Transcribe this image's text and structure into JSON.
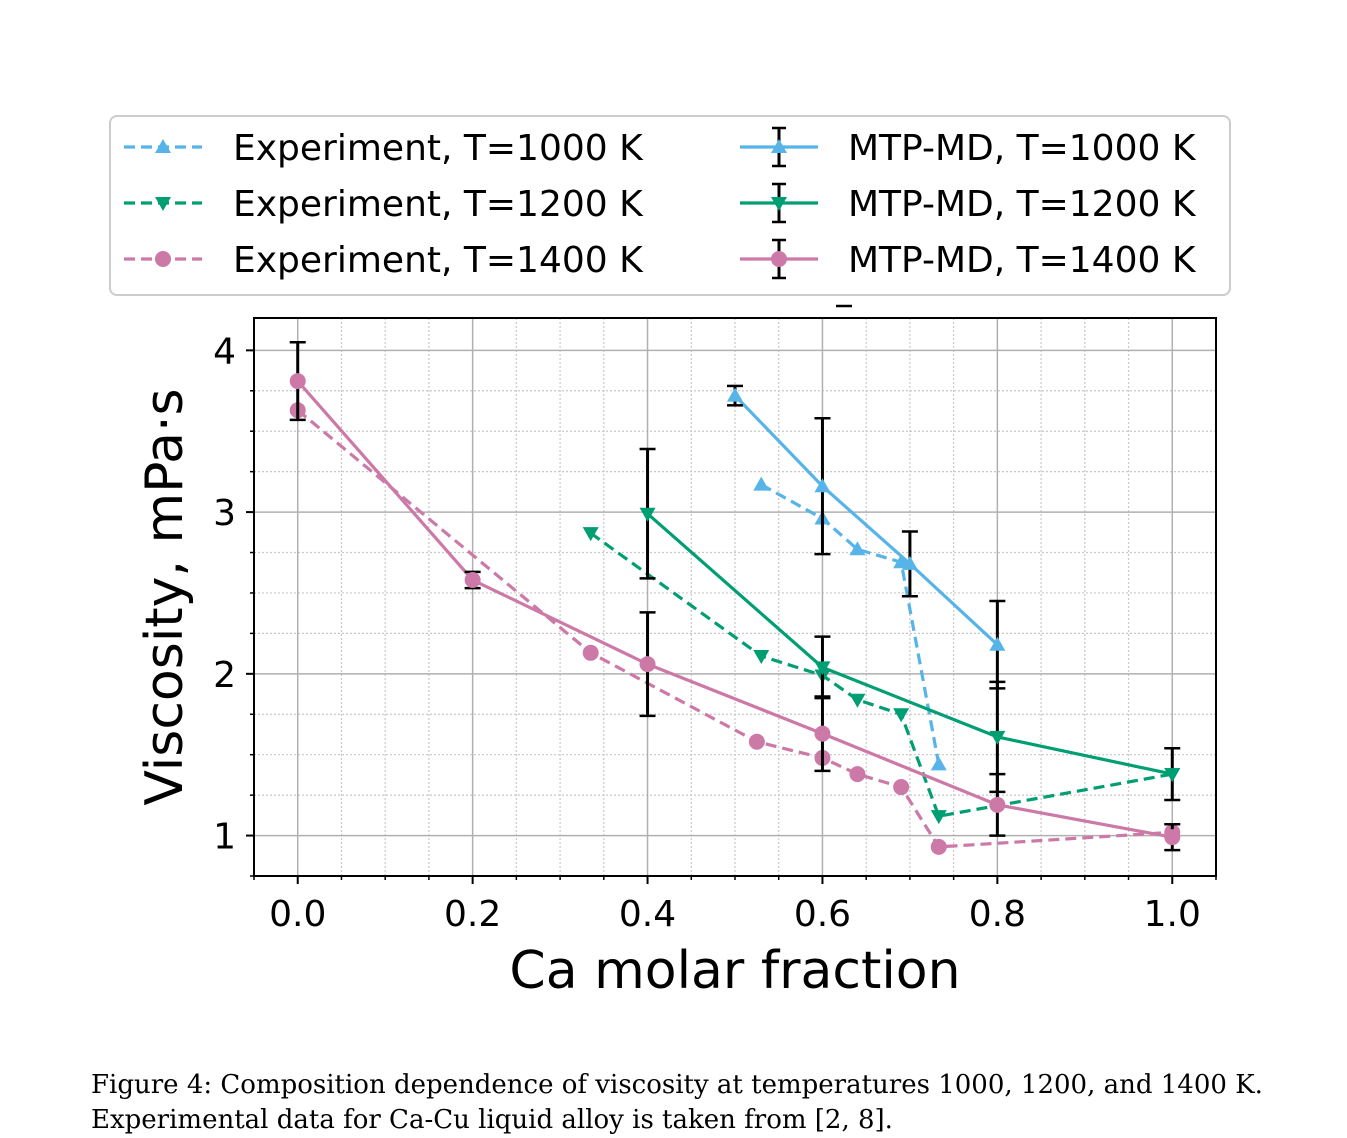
{
  "caption": {
    "line1": "Figure 4: Composition dependence of viscosity at temperatures 1000, 1200, and 1400 K.",
    "line2": "Experimental data for Ca-Cu liquid alloy is taken from [2, 8]."
  },
  "chart_data": {
    "type": "line",
    "title": "",
    "xlabel": "Ca molar fraction",
    "ylabel": "Viscosity, mPa·s",
    "xlim": [
      -0.05,
      1.05
    ],
    "ylim": [
      0.75,
      4.2
    ],
    "xticks": [
      0.0,
      0.2,
      0.4,
      0.6,
      0.8,
      1.0
    ],
    "xtick_labels": [
      "0.0",
      "0.2",
      "0.4",
      "0.6",
      "0.8",
      "1.0"
    ],
    "yticks": [
      1,
      2,
      3,
      4
    ],
    "ytick_labels": [
      "1",
      "2",
      "3",
      "4"
    ],
    "grid": "major solid, minor dotted",
    "legend_position": "above plot, two columns",
    "series": [
      {
        "name": "Experiment, T=1000 K",
        "color": "#56b4e9",
        "linestyle": "dashed",
        "marker": "triangle-up",
        "x": [
          0.53,
          0.6,
          0.64,
          0.69,
          0.733
        ],
        "y": [
          3.17,
          2.96,
          2.77,
          2.69,
          1.44
        ]
      },
      {
        "name": "Experiment, T=1200 K",
        "color": "#009e73",
        "linestyle": "dashed",
        "marker": "triangle-down",
        "x": [
          0.335,
          0.53,
          0.6,
          0.64,
          0.69,
          0.733,
          1.0
        ],
        "y": [
          2.87,
          2.11,
          1.99,
          1.84,
          1.75,
          1.12,
          1.38
        ]
      },
      {
        "name": "Experiment, T=1400 K",
        "color": "#cc79a7",
        "linestyle": "dashed",
        "marker": "circle",
        "x": [
          0.0,
          0.335,
          0.525,
          0.6,
          0.64,
          0.69,
          0.733,
          1.0
        ],
        "y": [
          3.63,
          2.13,
          1.58,
          1.48,
          1.38,
          1.3,
          0.93,
          1.02
        ]
      },
      {
        "name": "MTP-MD, T=1000 K",
        "color": "#56b4e9",
        "linestyle": "solid",
        "marker": "triangle-up",
        "x": [
          0.5,
          0.6,
          0.7,
          0.8
        ],
        "y": [
          3.72,
          3.16,
          2.68,
          2.18
        ],
        "yerr": [
          0.06,
          0.42,
          0.2,
          0.27
        ]
      },
      {
        "name": "MTP-MD, T=1200 K",
        "color": "#009e73",
        "linestyle": "solid",
        "marker": "triangle-down",
        "x": [
          0.4,
          0.6,
          0.8,
          1.0
        ],
        "y": [
          2.99,
          2.04,
          1.61,
          1.38
        ],
        "yerr": [
          0.4,
          0.19,
          0.34,
          0.16
        ]
      },
      {
        "name": "MTP-MD, T=1400 K",
        "color": "#cc79a7",
        "linestyle": "solid",
        "marker": "circle",
        "x": [
          0.0,
          0.2,
          0.4,
          0.6,
          0.8,
          1.0
        ],
        "y": [
          3.81,
          2.58,
          2.06,
          1.63,
          1.19,
          0.99
        ],
        "yerr": [
          0.24,
          0.05,
          0.32,
          0.23,
          0.19,
          0.08
        ]
      }
    ]
  }
}
